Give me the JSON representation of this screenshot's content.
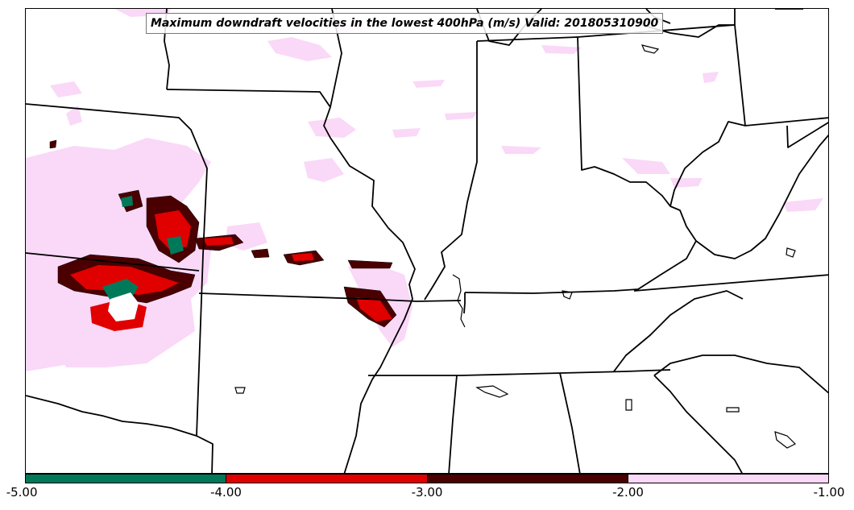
{
  "title": "Maximum downdraft velocities in the lowest 400hPa (m/s) Valid: 201805310900",
  "colorbar": {
    "tick_labels": [
      "-5.00",
      "-4.00",
      "-3.00",
      "-2.00",
      "-1.00"
    ],
    "bins": [
      {
        "min": -5.0,
        "max": -4.0,
        "color": "#00795a"
      },
      {
        "min": -4.0,
        "max": -3.0,
        "color": "#e00000"
      },
      {
        "min": -3.0,
        "max": -2.0,
        "color": "#4a0000"
      },
      {
        "min": -2.0,
        "max": -1.0,
        "color": "#fad8f7"
      }
    ]
  },
  "map": {
    "projection": "lambert conformal",
    "region": "central United States",
    "boundary_color": "#000000"
  }
}
